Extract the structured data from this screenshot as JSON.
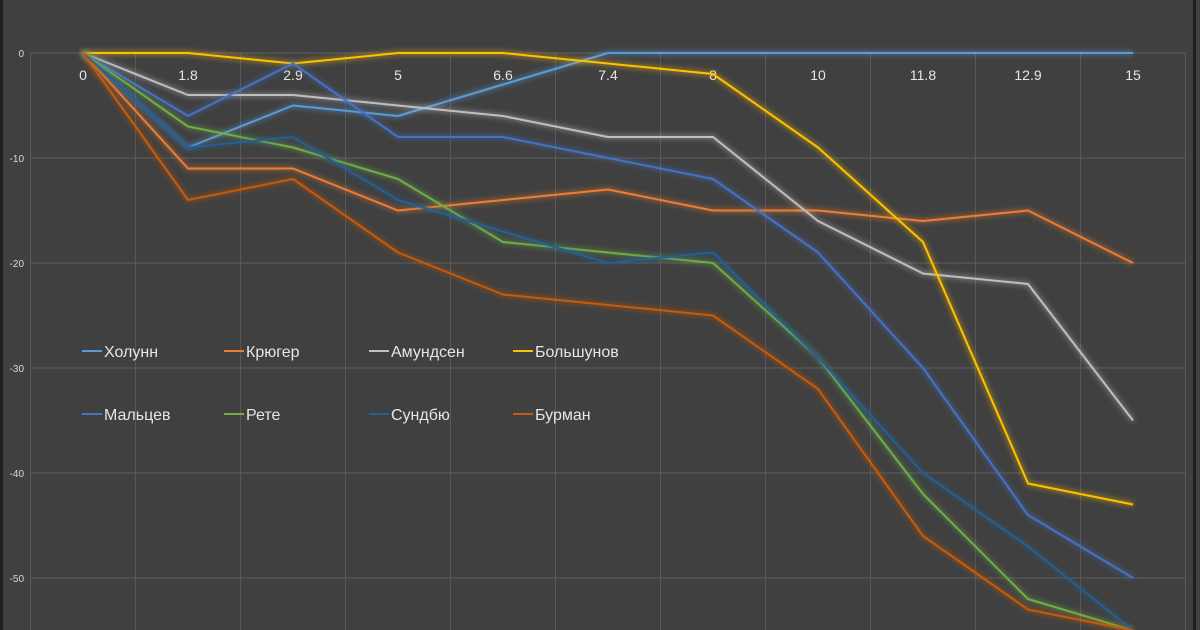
{
  "chart_data": {
    "type": "line",
    "title": "",
    "xlabel": "",
    "ylabel": "",
    "categories": [
      "0",
      "1.8",
      "2.9",
      "5",
      "6.6",
      "7.4",
      "8",
      "10",
      "11.8",
      "12.9",
      "15"
    ],
    "y_ticks": [
      "0",
      "-10",
      "-20",
      "-30",
      "-40",
      "-50"
    ],
    "ylim": [
      -55,
      0
    ],
    "grid": true,
    "legend_position": "center-left",
    "series": [
      {
        "name": "Холунн",
        "color": "#5b9bd5",
        "values": [
          0,
          -9,
          -5,
          -6,
          -3,
          0,
          0,
          0,
          0,
          0,
          0
        ]
      },
      {
        "name": "Крюгер",
        "color": "#ed7d31",
        "values": [
          0,
          -11,
          -11,
          -15,
          -14,
          -13,
          -15,
          -15,
          -16,
          -15,
          -20
        ]
      },
      {
        "name": "Амундсен",
        "color": "#bfbfbf",
        "values": [
          0,
          -4,
          -4,
          -5,
          -6,
          -8,
          -8,
          -16,
          -21,
          -22,
          -35
        ]
      },
      {
        "name": "Большунов",
        "color": "#ffc000",
        "values": [
          0,
          0,
          -1,
          0,
          0,
          -1,
          -2,
          -9,
          -18,
          -41,
          -43
        ]
      },
      {
        "name": "Мальцев",
        "color": "#4472c4",
        "values": [
          0,
          -6,
          -1,
          -8,
          -8,
          -10,
          -12,
          -19,
          -30,
          -44,
          -50
        ]
      },
      {
        "name": "Рете",
        "color": "#70ad47",
        "values": [
          0,
          -7,
          -9,
          -12,
          -18,
          -19,
          -20,
          -29,
          -42,
          -52,
          -55
        ]
      },
      {
        "name": "Сундбю",
        "color": "#255e91",
        "values": [
          0,
          -9,
          -8,
          -14,
          -17,
          -20,
          -19,
          -29,
          -40,
          -47,
          -55
        ]
      },
      {
        "name": "Бурман",
        "color": "#c55a11",
        "values": [
          0,
          -14,
          -12,
          -19,
          -23,
          -24,
          -25,
          -32,
          -46,
          -53,
          -55
        ]
      }
    ]
  }
}
